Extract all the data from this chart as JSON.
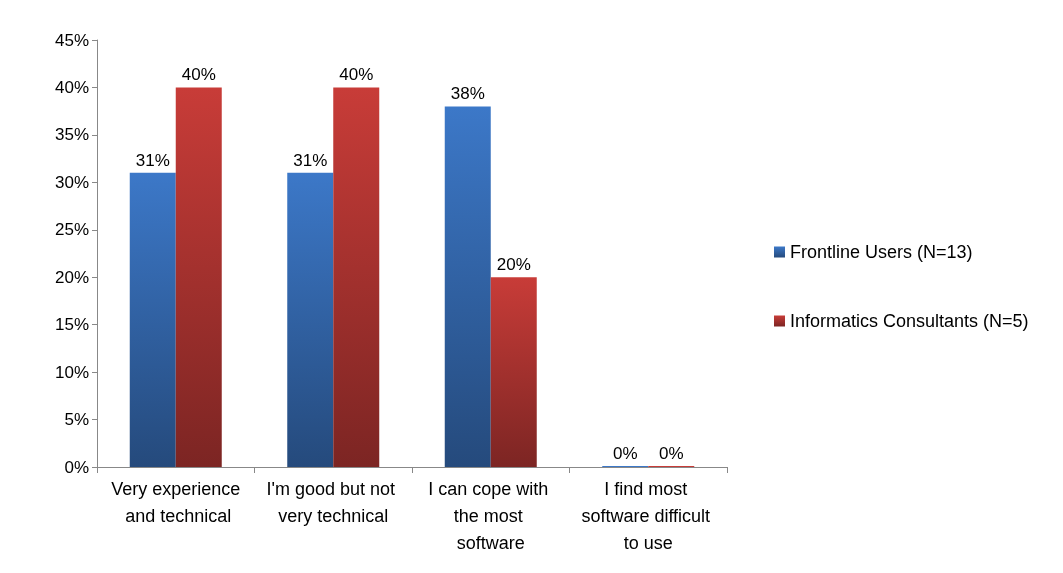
{
  "chart_data": {
    "type": "bar",
    "categories": [
      "Very experience and technical",
      "I'm good but not very technical",
      "I can cope with the most software",
      "I find most software difficult to use"
    ],
    "series": [
      {
        "name": "Frontline Users (N=13)",
        "color": "#3c78c8",
        "values": [
          31,
          31,
          38,
          0
        ],
        "value_labels": [
          "31%",
          "31%",
          "38%",
          "0%"
        ]
      },
      {
        "name": "Informatics Consultants (N=5)",
        "color": "#c83c38",
        "values": [
          40,
          40,
          20,
          0
        ],
        "value_labels": [
          "40%",
          "40%",
          "20%",
          "0%"
        ]
      }
    ],
    "ylim": [
      0,
      45
    ],
    "yticks": [
      {
        "value": 0,
        "label": "0%"
      },
      {
        "value": 5,
        "label": "5%"
      },
      {
        "value": 10,
        "label": "10%"
      },
      {
        "value": 15,
        "label": "15%"
      },
      {
        "value": 20,
        "label": "20%"
      },
      {
        "value": 25,
        "label": "25%"
      },
      {
        "value": 30,
        "label": "30%"
      },
      {
        "value": 35,
        "label": "35%"
      },
      {
        "value": 40,
        "label": "40%"
      },
      {
        "value": 45,
        "label": "45%"
      }
    ],
    "grid": false,
    "legend": "right"
  }
}
